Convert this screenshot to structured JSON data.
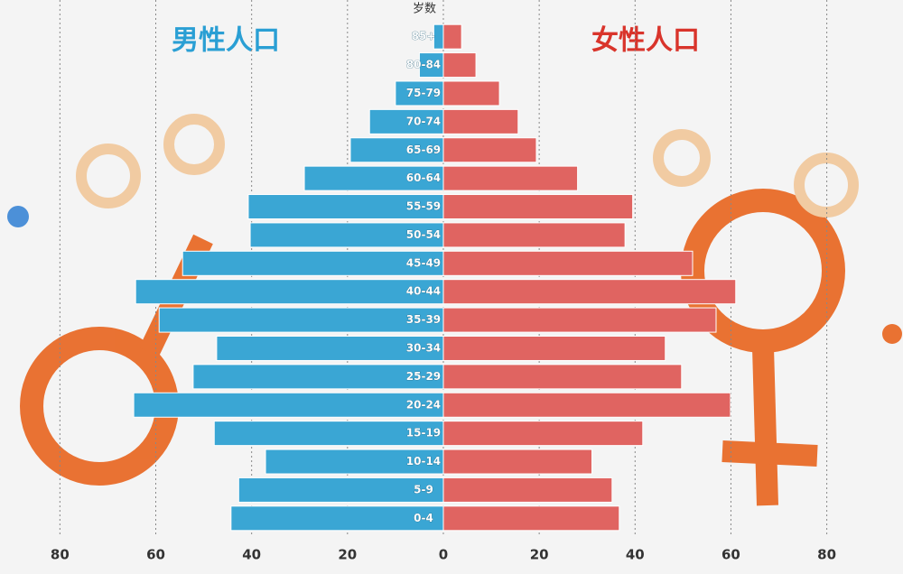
{
  "chart_data": {
    "type": "population-pyramid",
    "y_label": "岁数",
    "categories": [
      "85+",
      "80-84",
      "75-79",
      "70-74",
      "65-69",
      "60-64",
      "55-59",
      "50-54",
      "45-49",
      "40-44",
      "35-39",
      "30-34",
      "25-29",
      "20-24",
      "15-19",
      "10-14",
      "5-9",
      "0-4"
    ],
    "series": [
      {
        "name": "男性人口",
        "color": "#3aa6d4",
        "side": "left",
        "values": [
          2,
          5,
          10,
          15.4,
          19.4,
          29,
          40.7,
          40.3,
          54.4,
          64.2,
          59.3,
          47.3,
          52.2,
          64.6,
          47.8,
          37.1,
          42.7,
          44.3
        ]
      },
      {
        "name": "女性人口",
        "color": "#e06461",
        "side": "right",
        "values": [
          3.8,
          6.8,
          11.7,
          15.6,
          19.4,
          28,
          39.5,
          37.9,
          52,
          61,
          56.9,
          46.3,
          49.7,
          59.9,
          41.6,
          31,
          35.2,
          36.7
        ]
      }
    ],
    "xlim": [
      -92.5,
      95.9
    ],
    "xticks": [
      {
        "value": -80,
        "label": "80"
      },
      {
        "value": -60,
        "label": "60"
      },
      {
        "value": -40,
        "label": "40"
      },
      {
        "value": -20,
        "label": "20"
      },
      0,
      20,
      40,
      60,
      80
    ],
    "grid": true
  }
}
